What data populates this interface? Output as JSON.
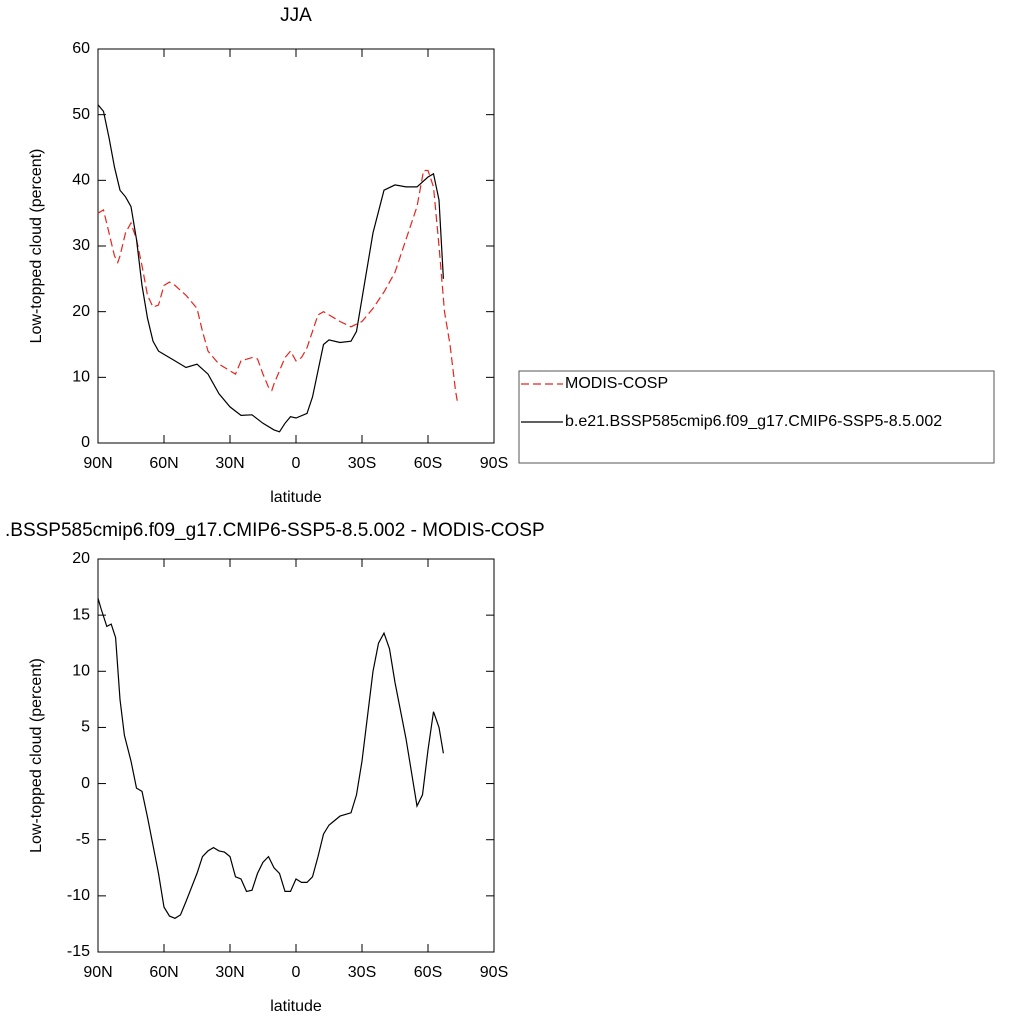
{
  "chart_data": [
    {
      "type": "line",
      "title": "JJA",
      "xlabel": "latitude",
      "ylabel": "Low-topped cloud (percent)",
      "xlim": [
        90,
        -90
      ],
      "ylim": [
        0,
        60
      ],
      "xticks": [
        {
          "value": 90,
          "label": "90N"
        },
        {
          "value": 60,
          "label": "60N"
        },
        {
          "value": 30,
          "label": "30N"
        },
        0,
        {
          "value": -30,
          "label": "30S"
        },
        {
          "value": -60,
          "label": "60S"
        },
        {
          "value": -90,
          "label": "90S"
        }
      ],
      "yticks": [
        0,
        10,
        20,
        30,
        40,
        50,
        60
      ],
      "legend": "right",
      "series": [
        {
          "name": "MODIS-COSP",
          "color": "#e8241c",
          "line_style": "dashed",
          "x": [
            90,
            87.5,
            85,
            82.5,
            81,
            80,
            77.5,
            75,
            72.5,
            70,
            67.5,
            65,
            62.5,
            60,
            57.5,
            55,
            50,
            45,
            42.5,
            40,
            35,
            30,
            27.5,
            25,
            20,
            17.5,
            15,
            12.5,
            11,
            10,
            7.5,
            5,
            2.5,
            0,
            -2.5,
            -5,
            -7.5,
            -10,
            -12.5,
            -15,
            -20,
            -25,
            -30,
            -35,
            -40,
            -45,
            -50,
            -55,
            -58,
            -60,
            -62.5,
            -65,
            -67.5,
            -70,
            -72.5,
            -73.5
          ],
          "values": [
            35,
            35.5,
            32,
            28.5,
            27.5,
            28.5,
            32,
            33.5,
            31,
            27,
            22.5,
            20.7,
            21,
            24,
            24.5,
            24,
            22.5,
            20.5,
            17,
            14,
            12,
            11,
            10.5,
            12.5,
            13,
            12.8,
            10.5,
            8.5,
            8,
            9,
            11,
            13,
            14,
            12.5,
            13,
            14.5,
            17,
            19.5,
            20,
            19.5,
            18.5,
            17.7,
            18.5,
            20.5,
            23,
            26,
            31,
            36,
            41.5,
            41.5,
            39,
            30,
            20,
            15,
            8,
            6
          ]
        },
        {
          "name": "b.e21.BSSP585cmip6.f09_g17.CMIP6-SSP5-8.5.002",
          "color": "#000000",
          "line_style": "solid",
          "x": [
            90,
            87.5,
            85,
            82.5,
            80,
            77.5,
            75,
            72.5,
            70,
            67.5,
            65,
            62.5,
            60,
            55,
            50,
            45,
            40,
            35,
            30,
            25,
            20,
            15,
            10,
            7.5,
            5,
            2.5,
            0,
            -5,
            -7.5,
            -10,
            -12.5,
            -15,
            -20,
            -25,
            -27.5,
            -30,
            -35,
            -40,
            -45,
            -50,
            -55,
            -60,
            -62.5,
            -65,
            -67
          ],
          "values": [
            51.5,
            50.5,
            46.5,
            42,
            38.5,
            37.5,
            36,
            31,
            24,
            19,
            15.5,
            14,
            13.5,
            12.5,
            11.5,
            12,
            10.5,
            7.5,
            5.5,
            4.2,
            4.3,
            3,
            2,
            1.7,
            3,
            4,
            3.8,
            4.5,
            7,
            11,
            15,
            15.7,
            15.3,
            15.5,
            17,
            22,
            32,
            38.5,
            39.3,
            39,
            39,
            40.5,
            41,
            37,
            25
          ]
        }
      ]
    },
    {
      "type": "line",
      "title": ".BSSP585cmip6.f09_g17.CMIP6-SSP5-8.5.002 - MODIS-COSP",
      "xlabel": "latitude",
      "ylabel": "Low-topped cloud (percent)",
      "xlim": [
        90,
        -90
      ],
      "ylim": [
        -15,
        20
      ],
      "xticks": [
        {
          "value": 90,
          "label": "90N"
        },
        {
          "value": 60,
          "label": "60N"
        },
        {
          "value": 30,
          "label": "30N"
        },
        0,
        {
          "value": -30,
          "label": "30S"
        },
        {
          "value": -60,
          "label": "60S"
        },
        {
          "value": -90,
          "label": "90S"
        }
      ],
      "yticks": [
        -15,
        -10,
        -5,
        0,
        5,
        10,
        15,
        20
      ],
      "series": [
        {
          "color": "#000000",
          "line_style": "solid",
          "x": [
            90,
            88.5,
            86,
            84,
            82,
            80,
            78,
            75,
            72.5,
            70,
            67.5,
            65,
            62.5,
            60,
            57.5,
            55,
            52.5,
            50,
            45,
            42.5,
            40,
            37.5,
            35,
            32.5,
            30,
            27.5,
            25,
            22.5,
            20,
            17.5,
            15,
            12.5,
            10,
            7.5,
            5,
            2.5,
            0,
            -2.5,
            -5,
            -7.5,
            -10,
            -12.5,
            -15,
            -17.5,
            -20,
            -25,
            -27.5,
            -30,
            -32.5,
            -35,
            -37.5,
            -40,
            -42.5,
            -45,
            -47.5,
            -50,
            -52.5,
            -55,
            -57.5,
            -60,
            -62.5,
            -65,
            -67
          ],
          "values": [
            16.5,
            15.5,
            14,
            14.2,
            13,
            7.5,
            4.3,
            2,
            -0.4,
            -0.7,
            -3,
            -5.5,
            -8,
            -11,
            -11.8,
            -12,
            -11.7,
            -10.5,
            -8,
            -6.5,
            -6,
            -5.7,
            -6,
            -6.1,
            -6.5,
            -8.3,
            -8.5,
            -9.6,
            -9.5,
            -8,
            -7,
            -6.5,
            -7.5,
            -8,
            -9.6,
            -9.6,
            -8.5,
            -8.8,
            -8.8,
            -8.3,
            -6.5,
            -4.5,
            -3.7,
            -3.3,
            -2.9,
            -2.6,
            -1,
            2,
            6,
            10,
            12.5,
            13.4,
            12,
            9,
            6.5,
            4,
            1,
            -2,
            -1,
            3,
            6.4,
            5,
            2.7
          ]
        }
      ]
    }
  ]
}
